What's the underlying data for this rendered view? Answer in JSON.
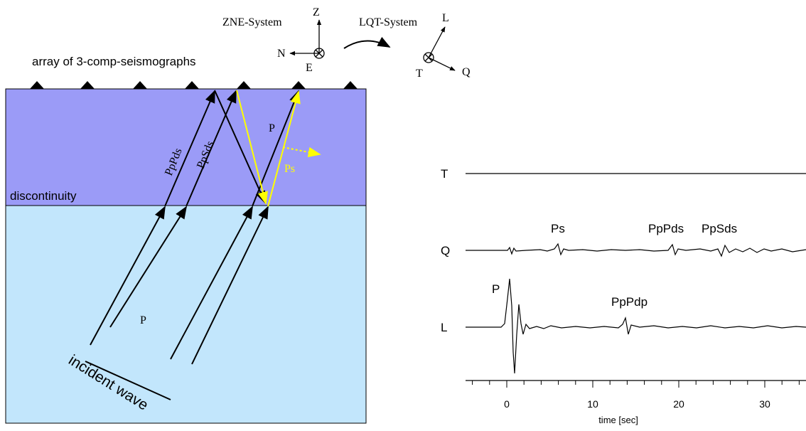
{
  "array_label": "array of  3-comp-seismographs",
  "zne": {
    "title": "ZNE-System",
    "z": "Z",
    "n": "N",
    "e": "E"
  },
  "lqt": {
    "title": "LQT-System",
    "l": "L",
    "t": "T",
    "q": "Q"
  },
  "model": {
    "layer_label": "discontinuity",
    "rays": [
      "PpPds",
      "PpSds"
    ],
    "p_up": "P",
    "ps": "Ps",
    "p_incident": "P",
    "incident": "incident wave"
  },
  "traces": [
    {
      "component": "T",
      "phases": []
    },
    {
      "component": "Q",
      "phases": [
        "Ps",
        "PpPds",
        "PpSds"
      ]
    },
    {
      "component": "L",
      "phases": [
        "P",
        "PpPdp"
      ]
    }
  ],
  "time_axis": {
    "label": "time [sec]",
    "ticks": [
      0,
      10,
      20,
      30
    ]
  }
}
